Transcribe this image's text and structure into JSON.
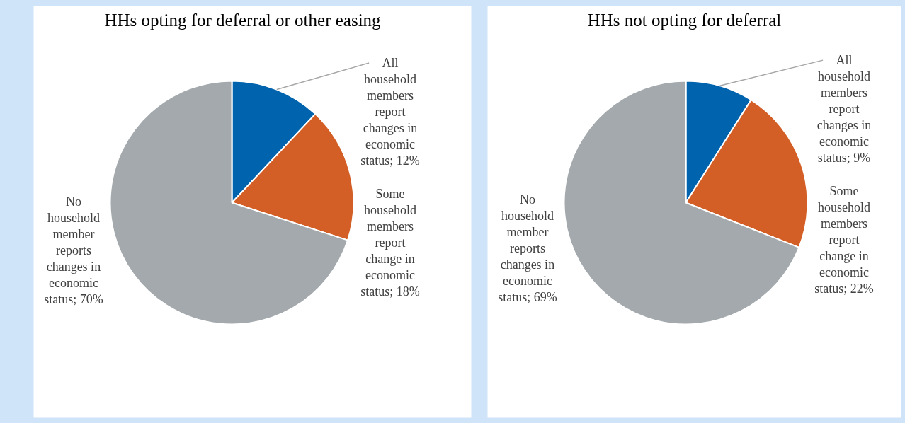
{
  "chart_data": [
    {
      "type": "pie",
      "title": "HHs opting for deferral or other easing",
      "categories": [
        "All household members report changes in economic status",
        "Some household members report change in economic status",
        "No household member reports changes in economic status"
      ],
      "values": [
        12,
        18,
        70
      ],
      "value_labels": [
        "12%",
        "18%",
        "70%"
      ],
      "colors": [
        "#0063ae",
        "#d35f27",
        "#a3a9ac"
      ]
    },
    {
      "type": "pie",
      "title": "HHs not opting for deferral",
      "categories": [
        "All household members report changes in economic status",
        "Some household members report change in economic status",
        "No household member reports changes in economic status"
      ],
      "values": [
        9,
        22,
        69
      ],
      "value_labels": [
        "9%",
        "22%",
        "69%"
      ],
      "colors": [
        "#0063ae",
        "#d35f27",
        "#a3a9ac"
      ]
    }
  ]
}
